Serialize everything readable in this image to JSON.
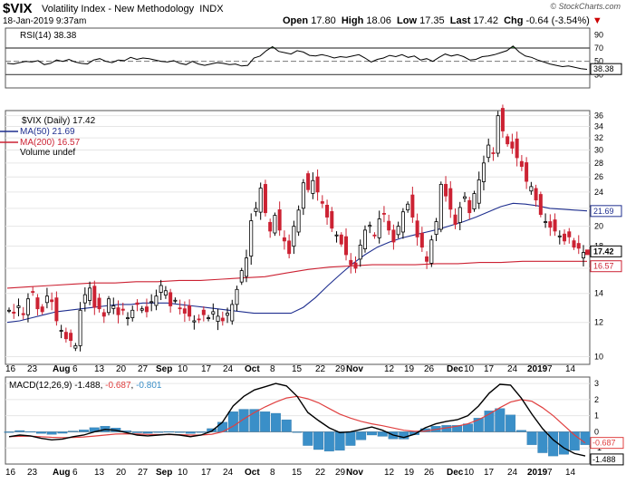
{
  "header": {
    "symbol": "$VIX",
    "description": "Volatility Index - New Methodology",
    "exchange": "INDX",
    "datetime": "18-Jan-2019 9:37am",
    "brand": "© StockCharts.com",
    "open_label": "Open",
    "open": "17.80",
    "high_label": "High",
    "high": "18.06",
    "low_label": "Low",
    "low": "17.35",
    "last_label": "Last",
    "last": "17.42",
    "chg_label": "Chg",
    "chg": "-0.64 (-3.54%)",
    "chg_arrow": "▼"
  },
  "colors": {
    "up": "#ffffff",
    "down": "#cc2233",
    "ma50": "#1f2f8f",
    "ma200": "#cc2233",
    "macd_line": "#000000",
    "signal_line": "#e04040",
    "hist": "#3a8fc8",
    "rsi_fill": "#3a7d3a"
  },
  "chart_data": [
    {
      "type": "line",
      "panel": "RSI",
      "title": "RSI(14) 38.38",
      "y_ticks": [
        30,
        50,
        70,
        90
      ],
      "ylim": [
        10,
        100
      ],
      "reference_lines": [
        30,
        50,
        70
      ],
      "current_value_label": "38.38",
      "series": [
        {
          "name": "RSI(14)",
          "values": [
            47,
            46,
            48,
            50,
            49,
            51,
            45,
            47,
            52,
            50,
            53,
            49,
            47,
            46,
            52,
            54,
            50,
            48,
            52,
            51,
            56,
            53,
            55,
            54,
            52,
            50,
            49,
            51,
            47,
            45,
            50,
            46,
            44,
            46,
            48,
            47,
            45,
            46,
            43,
            44,
            55,
            58,
            66,
            72,
            65,
            63,
            61,
            66,
            64,
            59,
            58,
            60,
            58,
            55,
            57,
            56,
            58,
            60,
            55,
            49,
            53,
            55,
            59,
            57,
            60,
            56,
            58,
            52,
            54,
            50,
            56,
            61,
            58,
            60,
            57,
            52,
            53,
            57,
            58,
            60,
            63,
            66,
            73,
            64,
            58,
            56,
            52,
            49,
            46,
            44,
            42,
            43,
            41,
            39,
            38
          ]
        }
      ]
    },
    {
      "type": "candlestick",
      "panel": "price",
      "title": "$VIX (Daily) 17.42",
      "legend": [
        "$VIX (Daily) 17.42",
        "MA(50) 21.69",
        "MA(200) 16.57",
        "Volume undef"
      ],
      "y_ticks": [
        10,
        12,
        14,
        16,
        18,
        20,
        22,
        24,
        26,
        28,
        30,
        32,
        34,
        36
      ],
      "ylim": [
        9.6,
        37
      ],
      "x_tick_labels": [
        "16",
        "23",
        "Aug",
        "6",
        "13",
        "20",
        "27",
        "Sep",
        "10",
        "17",
        "24",
        "Oct",
        "8",
        "15",
        "22",
        "29",
        "Nov",
        "12",
        "19",
        "26",
        "Dec",
        "10",
        "17",
        "24",
        "2019",
        "7",
        "14"
      ],
      "axis_value_labels": {
        "ma50": "21.69",
        "last": "17.42",
        "ma200": "16.57"
      },
      "close": [
        12.8,
        12.6,
        13.1,
        12.5,
        13.6,
        14.1,
        12.9,
        12.7,
        13.8,
        13.4,
        12.1,
        11.5,
        11.0,
        10.9,
        10.6,
        12.8,
        13.9,
        14.4,
        13.0,
        12.9,
        12.4,
        13.6,
        13.1,
        12.5,
        12.8,
        12.3,
        12.8,
        13.2,
        12.9,
        12.7,
        13.4,
        13.8,
        14.6,
        14.2,
        13.1,
        13.5,
        12.9,
        12.6,
        12.4,
        12.1,
        12.2,
        12.5,
        12.3,
        12.7,
        12.4,
        12.1,
        12.6,
        13.2,
        14.3,
        15.8,
        16.9,
        20.6,
        22.0,
        24.5,
        21.5,
        19.5,
        21.2,
        19.6,
        18.5,
        17.3,
        20.0,
        21.8,
        25.2,
        24.3,
        25.5,
        24.0,
        22.6,
        21.0,
        19.8,
        19.1,
        18.2,
        17.2,
        16.3,
        16.0,
        18.1,
        19.6,
        20.1,
        19.0,
        20.8,
        21.4,
        19.6,
        18.4,
        20.0,
        21.6,
        22.5,
        21.0,
        18.9,
        17.9,
        16.6,
        18.6,
        20.5,
        25.0,
        23.5,
        21.9,
        20.2,
        22.1,
        23.4,
        21.5,
        23.8,
        25.6,
        28.0,
        30.8,
        29.5,
        36.0,
        33.2,
        31.0,
        30.3,
        28.8,
        27.5,
        25.4,
        24.7,
        23.0,
        21.3,
        20.5,
        19.9,
        19.5,
        19.0,
        18.5,
        18.9,
        17.9,
        17.8,
        17.4
      ],
      "series": [
        {
          "name": "MA(50)",
          "values": [
            12.0,
            12.1,
            12.3,
            12.5,
            12.7,
            12.8,
            12.9,
            13.0,
            13.1,
            13.2,
            13.2,
            13.3,
            13.3,
            13.3,
            13.2,
            13.1,
            13.0,
            12.9,
            12.8,
            12.7,
            12.6,
            12.6,
            12.6,
            12.6,
            13.0,
            13.7,
            14.6,
            15.5,
            16.4,
            17.2,
            17.9,
            18.4,
            18.8,
            19.1,
            19.4,
            19.7,
            20.1,
            20.5,
            21.0,
            21.6,
            22.2,
            22.6,
            22.5,
            22.3,
            22.0,
            21.9,
            21.8,
            21.7
          ]
        },
        {
          "name": "MA(200)",
          "values": [
            14.4,
            14.5,
            14.6,
            14.7,
            14.8,
            14.8,
            14.9,
            14.9,
            15.0,
            15.0,
            15.1,
            15.2,
            15.3,
            15.6,
            15.9,
            16.1,
            16.2,
            16.3,
            16.3,
            16.3,
            16.4,
            16.4,
            16.5,
            16.5,
            16.6,
            16.6,
            16.6,
            16.6
          ]
        }
      ]
    },
    {
      "type": "bar",
      "panel": "MACD",
      "title": "MACD(12,26,9) -1.488, -0.687, -0.801",
      "legend": [
        "MACD(12,26,9) -1.488",
        "-0.687",
        "-0.801"
      ],
      "y_ticks": [
        -1,
        0,
        1,
        2,
        3
      ],
      "ylim": [
        -2.0,
        3.4
      ],
      "axis_value_labels": {
        "signal": "-0.687",
        "macd": "-1.488"
      },
      "x_tick_labels": [
        "16",
        "23",
        "Aug",
        "6",
        "13",
        "20",
        "27",
        "Sep",
        "10",
        "17",
        "24",
        "Oct",
        "8",
        "15",
        "22",
        "29",
        "Nov",
        "12",
        "19",
        "26",
        "Dec",
        "10",
        "17",
        "24",
        "2019",
        "7",
        "14"
      ],
      "series": [
        {
          "name": "MACD(12,26,9)",
          "values": [
            -0.3,
            -0.2,
            -0.25,
            -0.4,
            -0.5,
            -0.45,
            -0.3,
            -0.2,
            0.0,
            0.15,
            0.1,
            -0.05,
            -0.2,
            -0.25,
            -0.2,
            -0.15,
            -0.2,
            -0.3,
            -0.2,
            0.05,
            0.6,
            1.6,
            2.2,
            2.6,
            2.8,
            3.0,
            2.85,
            2.2,
            1.2,
            0.7,
            0.25,
            -0.05,
            0.0,
            0.15,
            0.3,
            0.1,
            -0.2,
            -0.35,
            -0.15,
            0.25,
            0.5,
            0.65,
            0.75,
            1.0,
            1.6,
            2.4,
            2.95,
            2.9,
            2.1,
            1.1,
            0.2,
            -0.5,
            -1.0,
            -1.35,
            -1.5
          ]
        },
        {
          "name": "Signal",
          "values": [
            -0.3,
            -0.28,
            -0.27,
            -0.3,
            -0.34,
            -0.36,
            -0.35,
            -0.32,
            -0.26,
            -0.2,
            -0.14,
            -0.12,
            -0.14,
            -0.16,
            -0.17,
            -0.17,
            -0.18,
            -0.2,
            -0.2,
            -0.15,
            0.0,
            0.35,
            0.8,
            1.2,
            1.55,
            1.85,
            2.1,
            2.2,
            2.05,
            1.8,
            1.45,
            1.1,
            0.85,
            0.65,
            0.5,
            0.38,
            0.24,
            0.1,
            0.03,
            0.05,
            0.15,
            0.25,
            0.35,
            0.5,
            0.75,
            1.1,
            1.5,
            1.85,
            2.0,
            1.9,
            1.5,
            1.0,
            0.4,
            -0.2,
            -0.69
          ]
        },
        {
          "name": "Histogram",
          "values": [
            0.0,
            0.08,
            0.02,
            -0.1,
            -0.16,
            -0.09,
            0.05,
            0.12,
            0.26,
            0.35,
            0.24,
            0.07,
            -0.06,
            -0.09,
            -0.03,
            0.02,
            -0.02,
            -0.1,
            0.0,
            0.2,
            0.6,
            1.25,
            1.4,
            1.4,
            1.25,
            1.15,
            0.75,
            0.0,
            -0.85,
            -1.1,
            -1.2,
            -1.15,
            -0.85,
            -0.5,
            -0.2,
            -0.28,
            -0.44,
            -0.45,
            -0.18,
            0.2,
            0.35,
            0.4,
            0.4,
            0.5,
            0.85,
            1.3,
            1.45,
            1.05,
            0.1,
            -0.8,
            -1.3,
            -1.5,
            -1.4,
            -1.15,
            -0.8
          ]
        }
      ]
    }
  ]
}
